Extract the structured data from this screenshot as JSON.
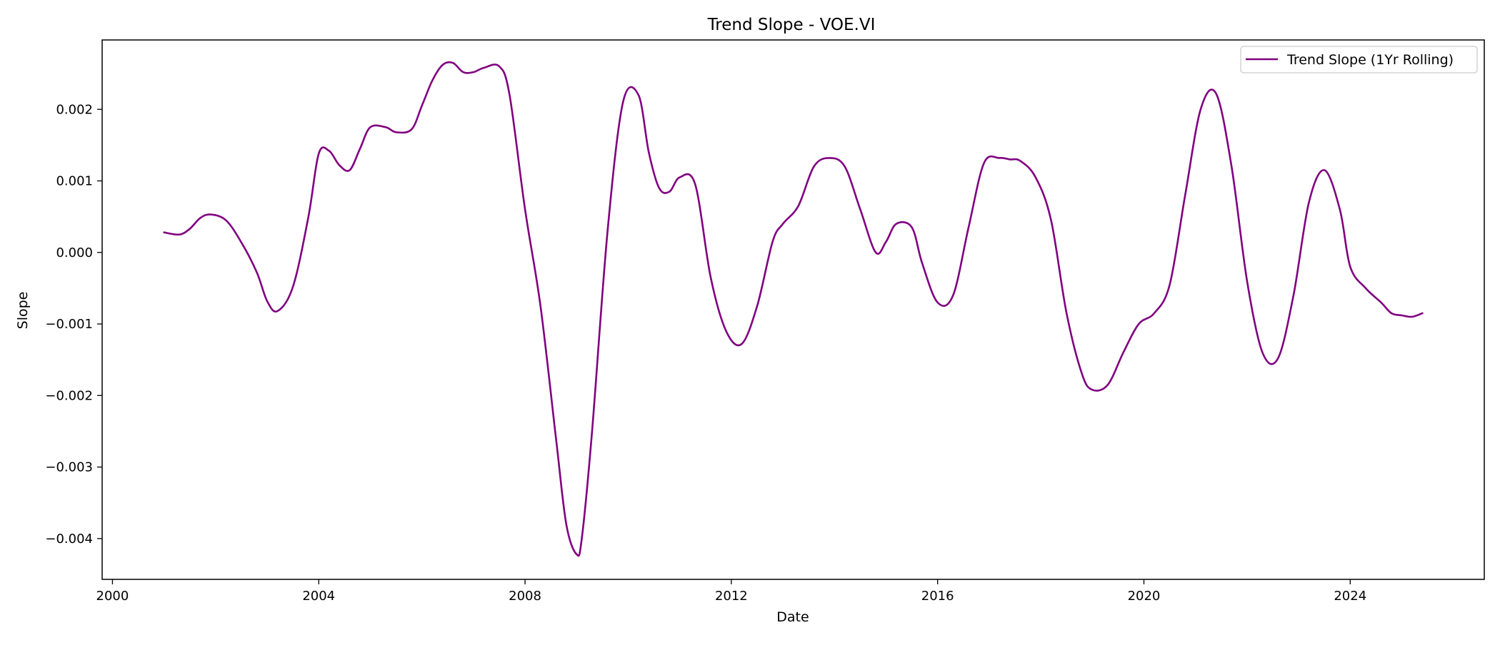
{
  "chart_data": {
    "type": "line",
    "title": "Trend Slope - VOE.VI",
    "xlabel": "Date",
    "ylabel": "Slope",
    "xlim": [
      1999.8,
      2026.6
    ],
    "ylim": [
      -0.00457,
      0.00297
    ],
    "x_ticks": [
      2000,
      2004,
      2008,
      2012,
      2016,
      2020,
      2024
    ],
    "x_tick_labels": [
      "2000",
      "2004",
      "2008",
      "2012",
      "2016",
      "2020",
      "2024"
    ],
    "y_ticks": [
      0.002,
      0.001,
      0.0,
      -0.001,
      -0.002,
      -0.003,
      -0.004
    ],
    "y_tick_labels": [
      "0.002",
      "0.001",
      "0.000",
      "−0.001",
      "−0.002",
      "−0.003",
      "−0.004"
    ],
    "grid": false,
    "legend_position": "top-right",
    "series": [
      {
        "name": "Trend Slope (1Yr Rolling)",
        "color": "#800080",
        "x": [
          2001.0,
          2001.3,
          2001.5,
          2001.7,
          2001.9,
          2002.2,
          2002.5,
          2002.8,
          2003.0,
          2003.2,
          2003.5,
          2003.8,
          2004.0,
          2004.2,
          2004.4,
          2004.6,
          2004.8,
          2005.0,
          2005.3,
          2005.5,
          2005.8,
          2006.0,
          2006.2,
          2006.4,
          2006.6,
          2006.8,
          2007.0,
          2007.2,
          2007.5,
          2007.7,
          2008.0,
          2008.3,
          2008.6,
          2008.8,
          2009.0,
          2009.1,
          2009.3,
          2009.6,
          2009.9,
          2010.2,
          2010.4,
          2010.6,
          2010.8,
          2011.0,
          2011.3,
          2011.6,
          2011.9,
          2012.2,
          2012.5,
          2012.8,
          2013.0,
          2013.3,
          2013.6,
          2013.9,
          2014.2,
          2014.5,
          2014.8,
          2015.0,
          2015.2,
          2015.5,
          2015.7,
          2016.0,
          2016.3,
          2016.6,
          2016.9,
          2017.2,
          2017.4,
          2017.6,
          2017.9,
          2018.2,
          2018.5,
          2018.8,
          2019.0,
          2019.3,
          2019.6,
          2019.9,
          2020.2,
          2020.5,
          2020.8,
          2021.1,
          2021.4,
          2021.7,
          2022.0,
          2022.3,
          2022.6,
          2022.9,
          2023.2,
          2023.5,
          2023.8,
          2024.0,
          2024.3,
          2024.6,
          2024.8,
          2025.0,
          2025.2,
          2025.4
        ],
        "y": [
          0.00028,
          0.00025,
          0.00033,
          0.00048,
          0.00053,
          0.00045,
          0.00014,
          -0.00028,
          -0.00068,
          -0.00082,
          -0.00048,
          0.0005,
          0.00138,
          0.00142,
          0.00122,
          0.00115,
          0.00145,
          0.00175,
          0.00175,
          0.00168,
          0.00172,
          0.00205,
          0.0024,
          0.00262,
          0.00265,
          0.00252,
          0.00252,
          0.00258,
          0.0026,
          0.0022,
          0.0006,
          -0.00075,
          -0.0026,
          -0.0038,
          -0.00422,
          -0.004,
          -0.0025,
          0.0003,
          0.0021,
          0.0022,
          0.0014,
          0.0009,
          0.00085,
          0.00105,
          0.00095,
          -0.00035,
          -0.0011,
          -0.00128,
          -0.00075,
          0.00015,
          0.0004,
          0.00065,
          0.0012,
          0.00132,
          0.0012,
          0.0006,
          0.0,
          0.00015,
          0.0004,
          0.00035,
          -0.00015,
          -0.0007,
          -0.0006,
          0.00035,
          0.00125,
          0.00132,
          0.0013,
          0.00128,
          0.00105,
          0.00045,
          -0.00085,
          -0.0017,
          -0.00192,
          -0.00185,
          -0.0014,
          -0.001,
          -0.00085,
          -0.00045,
          0.0008,
          0.002,
          0.00222,
          0.0012,
          -0.0004,
          -0.0014,
          -0.00148,
          -0.0006,
          0.0007,
          0.00115,
          0.0006,
          -0.0002,
          -0.0005,
          -0.0007,
          -0.00085,
          -0.00088,
          -0.0009,
          -0.00085
        ]
      }
    ]
  }
}
